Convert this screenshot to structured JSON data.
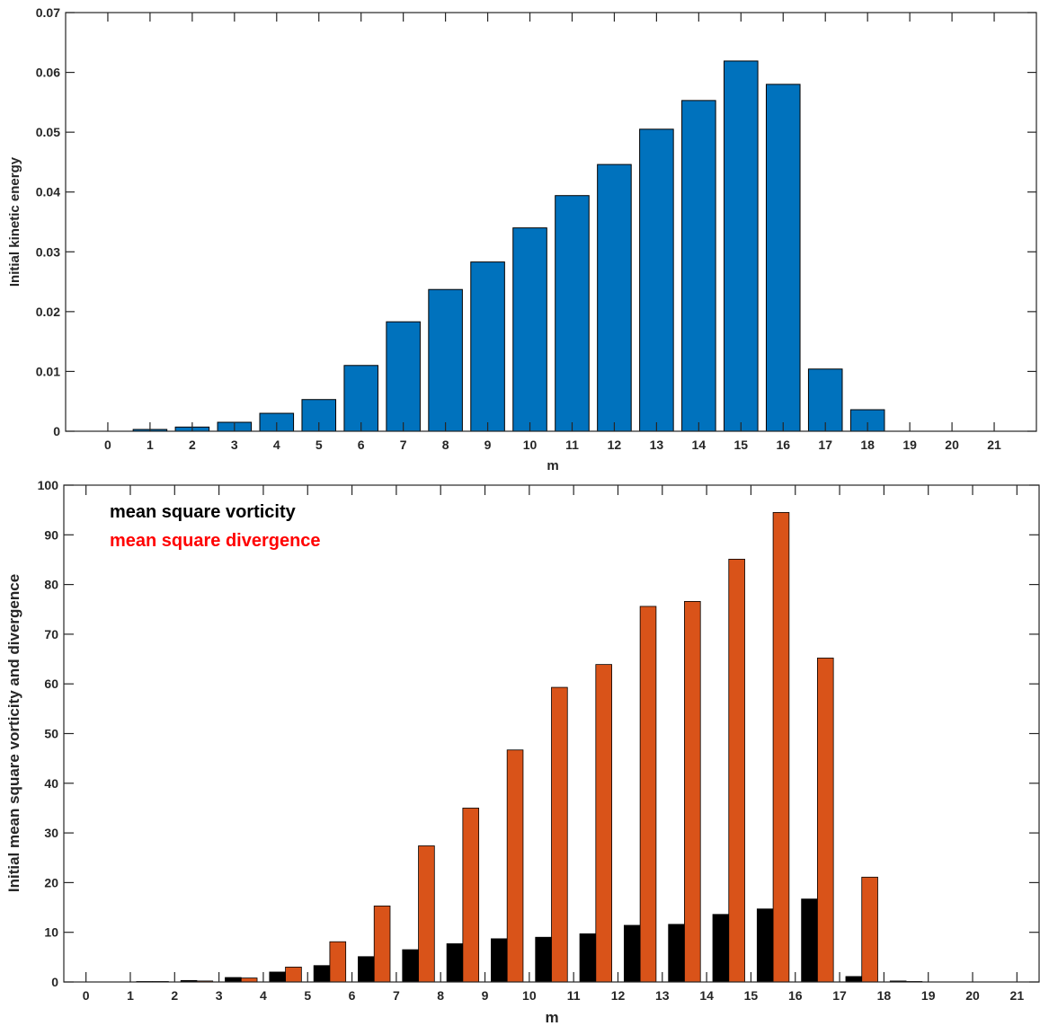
{
  "chart_data": [
    {
      "type": "bar",
      "xlabel": "m",
      "ylabel": "Initial kinetic energy",
      "ylim": [
        0,
        0.07
      ],
      "xlim": [
        -1,
        22
      ],
      "yticks": [
        "0",
        "0.01",
        "0.02",
        "0.03",
        "0.04",
        "0.05",
        "0.06",
        "0.07"
      ],
      "categories": [
        "0",
        "1",
        "2",
        "3",
        "4",
        "5",
        "6",
        "7",
        "8",
        "9",
        "10",
        "11",
        "12",
        "13",
        "14",
        "15",
        "16",
        "17",
        "18",
        "19",
        "20",
        "21"
      ],
      "series": [
        {
          "color": "#0072bd",
          "values": [
            0.0,
            0.0003,
            0.0007,
            0.0015,
            0.003,
            0.0053,
            0.011,
            0.0183,
            0.0237,
            0.0283,
            0.034,
            0.0394,
            0.0446,
            0.0505,
            0.0553,
            0.0619,
            0.058,
            0.0104,
            0.0036,
            0.0,
            0.0,
            0.0
          ]
        }
      ],
      "grid": false
    },
    {
      "type": "bar",
      "xlabel": "m",
      "ylabel": "Initial mean square vorticity and divergence",
      "ylim": [
        0,
        100
      ],
      "xlim": [
        -0.5,
        21.5
      ],
      "yticks": [
        "0",
        "10",
        "20",
        "30",
        "40",
        "50",
        "60",
        "70",
        "80",
        "90",
        "100"
      ],
      "categories": [
        "0",
        "1",
        "2",
        "3",
        "4",
        "5",
        "6",
        "7",
        "8",
        "9",
        "10",
        "11",
        "12",
        "13",
        "14",
        "15",
        "16",
        "17",
        "18",
        "19",
        "20",
        "21"
      ],
      "series": [
        {
          "name": "mean square vorticity",
          "color": "#000000",
          "values": [
            0,
            0.1,
            0.3,
            0.9,
            2.0,
            3.3,
            5.1,
            6.5,
            7.7,
            8.7,
            9.0,
            9.7,
            11.4,
            11.6,
            13.6,
            14.7,
            16.7,
            1.1,
            0.2,
            0,
            0,
            0
          ]
        },
        {
          "name": "mean square divergence",
          "color": "#d95319",
          "values": [
            0,
            0.1,
            0.2,
            0.8,
            3.0,
            8.1,
            15.3,
            27.4,
            35.0,
            46.7,
            59.3,
            63.9,
            75.6,
            76.6,
            85.1,
            94.5,
            65.2,
            21.1,
            0.1,
            0,
            0,
            0
          ]
        }
      ],
      "legend": "top-left",
      "legend_colors": [
        "#000000",
        "#ff0000"
      ],
      "grid": false
    }
  ]
}
